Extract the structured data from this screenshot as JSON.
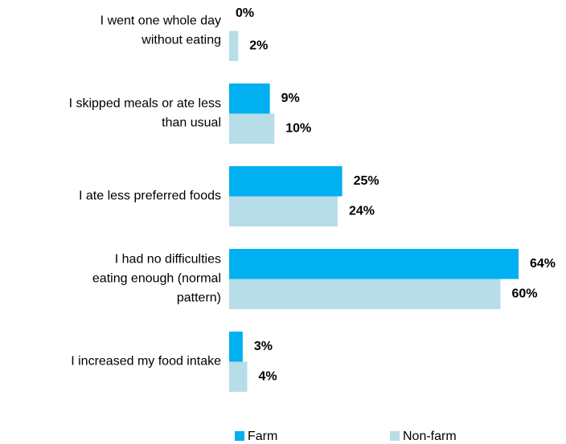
{
  "chart_data": {
    "type": "bar",
    "orientation": "horizontal",
    "categories": [
      [
        "I went one whole day",
        "without eating"
      ],
      [
        "I skipped meals or ate less",
        "than usual"
      ],
      [
        "I ate less preferred foods"
      ],
      [
        "I had no difficulties",
        "eating enough (normal",
        "pattern)"
      ],
      [
        "I increased my food intake"
      ]
    ],
    "series": [
      {
        "name": "Farm",
        "color": "#00b0f0",
        "values": [
          0,
          9,
          25,
          64,
          3
        ],
        "value_labels": [
          "0%",
          "9%",
          "25%",
          "64%",
          "3%"
        ]
      },
      {
        "name": "Non-farm",
        "color": "#b7dde8",
        "values": [
          2,
          10,
          24,
          60,
          4
        ],
        "value_labels": [
          "2%",
          "10%",
          "24%",
          "60%",
          "4%"
        ]
      }
    ]
  }
}
